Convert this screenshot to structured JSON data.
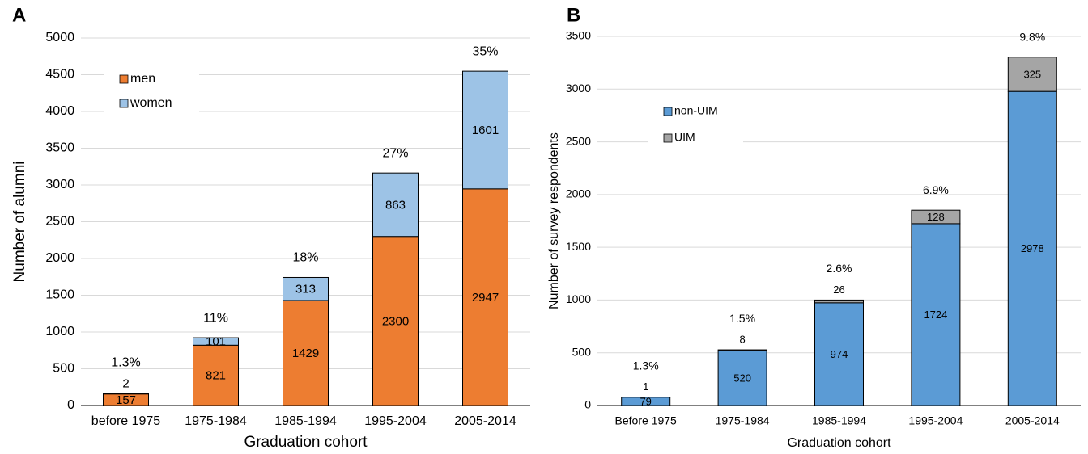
{
  "chart_data": [
    {
      "type": "bar",
      "stacked": true,
      "panel": "A",
      "ylabel": "Number of alumni",
      "xlabel": "Graduation cohort",
      "categories": [
        "before 1975",
        "1975-1984",
        "1985-1994",
        "1995-2004",
        "2005-2014"
      ],
      "series": [
        {
          "name": "men",
          "color": "#ed7d31",
          "values": [
            157,
            821,
            1429,
            2300,
            2947
          ]
        },
        {
          "name": "women",
          "color": "#9dc3e6",
          "values": [
            2,
            101,
            313,
            863,
            1601
          ]
        }
      ],
      "annotations": [
        "1.3%",
        "11%",
        "18%",
        "27%",
        "35%"
      ],
      "ylim": [
        0,
        5000
      ],
      "yticks": [
        0,
        500,
        1000,
        1500,
        2000,
        2500,
        3000,
        3500,
        4000,
        4500,
        5000
      ],
      "grid": true,
      "legend": "upper left"
    },
    {
      "type": "bar",
      "stacked": true,
      "panel": "B",
      "ylabel": "Number of survey respondents",
      "xlabel": "Graduation cohort",
      "categories": [
        "Before 1975",
        "1975-1984",
        "1985-1994",
        "1995-2004",
        "2005-2014"
      ],
      "series": [
        {
          "name": "non-UIM",
          "color": "#5b9bd5",
          "values": [
            79,
            520,
            974,
            1724,
            2978
          ]
        },
        {
          "name": "UIM",
          "color": "#a5a5a5",
          "values": [
            1,
            8,
            26,
            128,
            325
          ]
        }
      ],
      "annotations": [
        "1.3%",
        "1.5%",
        "2.6%",
        "6.9%",
        "9.8%"
      ],
      "ylim": [
        0,
        3500
      ],
      "yticks": [
        0,
        500,
        1000,
        1500,
        2000,
        2500,
        3000,
        3500
      ],
      "grid": true,
      "legend": "upper left"
    }
  ]
}
